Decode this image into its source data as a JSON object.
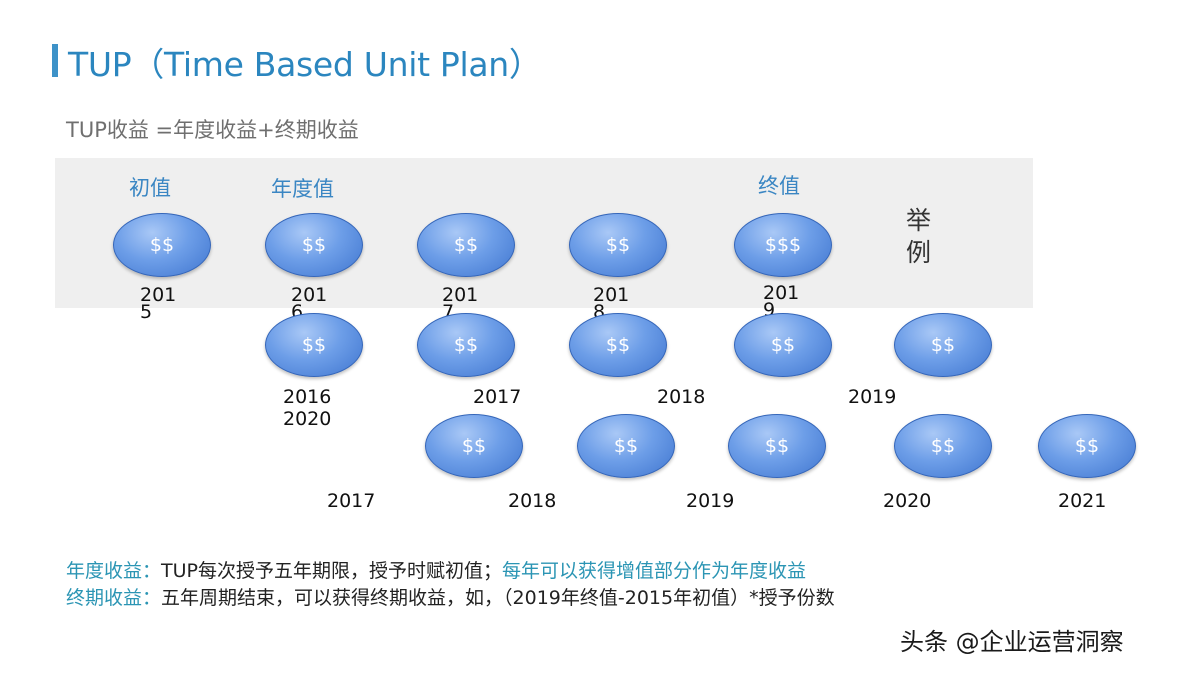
{
  "title": "TUP（Time Based Unit Plan）",
  "formula": "TUP收益 =年度收益+终期收益",
  "headers": {
    "initial": "初值",
    "annual": "年度值",
    "final": "终值"
  },
  "example": "举例",
  "row1": {
    "coins": [
      "$$",
      "$$",
      "$$",
      "$$",
      "$$$"
    ],
    "years": [
      {
        "a": "201",
        "b": "5"
      },
      {
        "a": "201",
        "b": "6"
      },
      {
        "a": "201",
        "b": "7"
      },
      {
        "a": "201",
        "b": "8"
      },
      {
        "a": "201",
        "b": "9"
      }
    ]
  },
  "row2": {
    "coins": [
      "$$",
      "$$",
      "$$",
      "$$",
      "$$"
    ],
    "years": [
      "2016",
      "2020",
      "2017",
      "2018",
      "2019"
    ]
  },
  "row3": {
    "coins": [
      "$$",
      "$$",
      "$$",
      "$$",
      "$$"
    ],
    "years": [
      "2017",
      "2018",
      "2019",
      "2020",
      "2021"
    ]
  },
  "notes": {
    "annual_label": "年度收益：",
    "annual_text": "TUP每次授予五年期限，授予时赋初值；",
    "annual_highlight": "每年可以获得增值部分作为年度收益",
    "final_label": "终期收益：",
    "final_text": "五年周期结束，可以获得终期收益，如，（2019年终值-2015年初值）*授予份数"
  },
  "watermark": "头条 @企业运营洞察"
}
